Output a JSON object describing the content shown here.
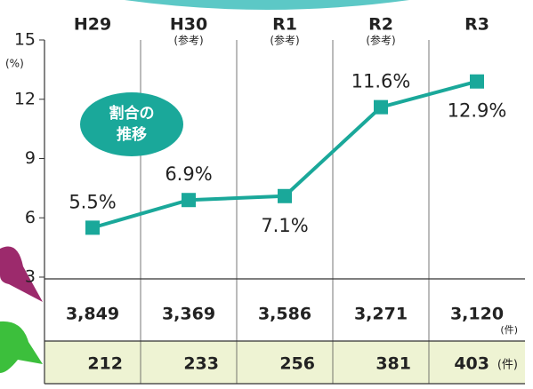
{
  "chart_data": {
    "type": "line",
    "categories": [
      "H29",
      "H30",
      "R1",
      "R2",
      "R3"
    ],
    "category_notes": [
      null,
      "(参考)",
      "(参考)",
      "(参考)",
      null
    ],
    "values": [
      5.5,
      6.9,
      7.1,
      11.6,
      12.9
    ],
    "value_labels": [
      "5.5%",
      "6.9%",
      "7.1%",
      "11.6%",
      "12.9%"
    ],
    "color": "#1aa89a",
    "ylim": [
      3,
      15
    ],
    "yticks": [
      3,
      6,
      9,
      12,
      15
    ],
    "y_unit": "(%)",
    "badge": [
      "割合の",
      "推移"
    ]
  },
  "table": {
    "rows": [
      [
        "3,849",
        "3,369",
        "3,586",
        "3,271",
        "3,120"
      ],
      [
        "212",
        "233",
        "256",
        "381",
        "403"
      ]
    ],
    "units": [
      "(件)",
      "(件)"
    ]
  }
}
